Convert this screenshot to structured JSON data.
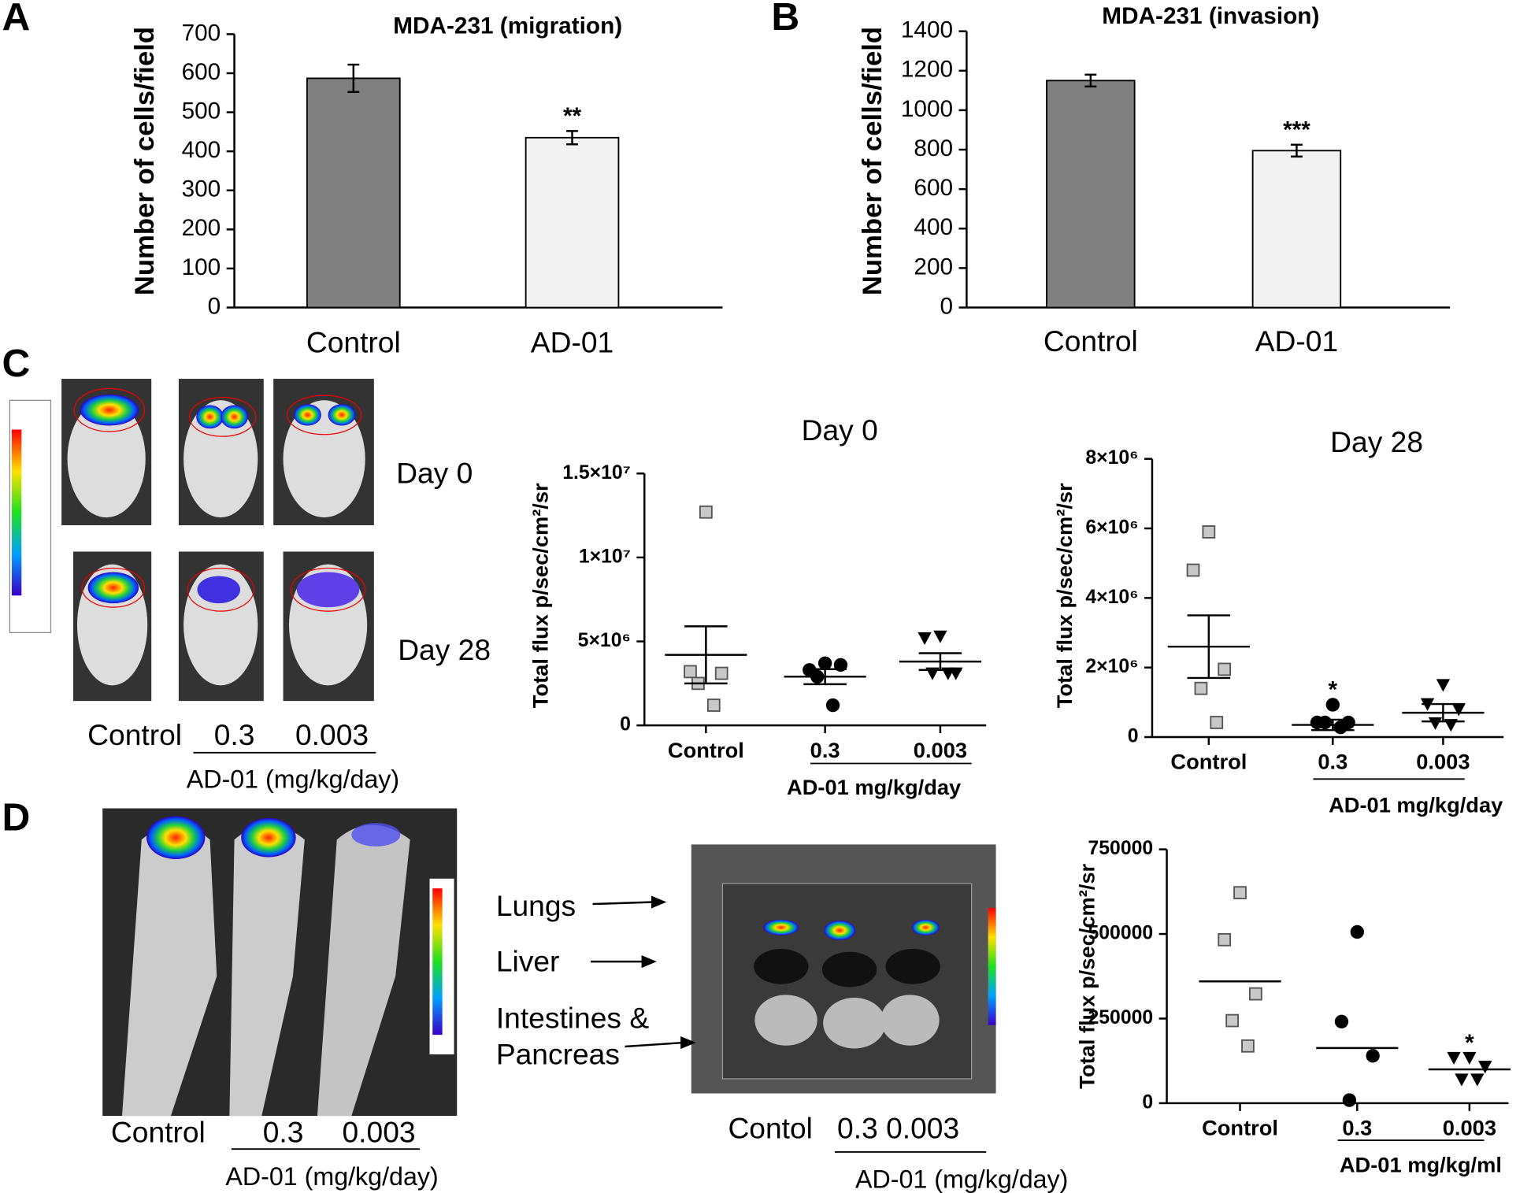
{
  "panel_labels": [
    "A",
    "B",
    "C",
    "D"
  ],
  "panel_C_image": {
    "rows": [
      "Day 0",
      "Day 28"
    ],
    "columns": [
      "Control",
      "0.3",
      "0.003"
    ],
    "group_label": "AD-01 (mg/kg/day)"
  },
  "panel_D_image": {
    "columns": [
      "Control",
      "0.3",
      "0.003"
    ],
    "group_label": "AD-01 (mg/kg/day)"
  },
  "panel_D_organs": {
    "organs": [
      "Lungs",
      "Liver",
      "Intestines &",
      "Pancreas"
    ],
    "columns": [
      "Contol",
      "0.3 0.003"
    ],
    "group_label": "AD-01 (mg/kg/day)"
  },
  "chart_data": [
    {
      "type": "bar",
      "title": "MDA-231 (migration)",
      "y_label": "Number of cells/field",
      "categories": [
        "Control",
        "AD-01"
      ],
      "values": [
        587,
        435
      ],
      "errors": [
        35,
        17
      ],
      "colors": [
        "#808080",
        "#f2f2f2"
      ],
      "annotations": [
        {
          "text": "**",
          "category": "AD-01"
        }
      ],
      "ylim": [
        0,
        700
      ],
      "yticks": [
        0,
        100,
        200,
        300,
        400,
        500,
        600,
        700
      ]
    },
    {
      "type": "bar",
      "title": "MDA-231 (invasion)",
      "y_label": "Number of cells/field",
      "categories": [
        "Control",
        "AD-01"
      ],
      "values": [
        1150,
        795
      ],
      "errors": [
        30,
        30
      ],
      "colors": [
        "#808080",
        "#f2f2f2"
      ],
      "annotations": [
        {
          "text": "***",
          "category": "AD-01"
        }
      ],
      "ylim": [
        0,
        1400
      ],
      "yticks": [
        0,
        200,
        400,
        600,
        800,
        1000,
        1200,
        1400
      ]
    },
    {
      "type": "dot",
      "title": "Day 0",
      "y_label": "Total flux p/sec/cm²/sr",
      "x_label": "AD-01 mg/kg/day",
      "categories": [
        "Control",
        "0.3",
        "0.003"
      ],
      "markers": [
        "square",
        "circle",
        "triangle"
      ],
      "colors": [
        "#c8c8c8",
        "#000000",
        "#000000"
      ],
      "values": [
        [
          12700000,
          3200000,
          3100000,
          2500000,
          1200000
        ],
        [
          3700000,
          3300000,
          3600000,
          2900000,
          1200000
        ],
        [
          5300000,
          5200000,
          3100000,
          3100000,
          3100000
        ]
      ],
      "means": [
        4200000,
        2900000,
        3800000
      ],
      "errors": [
        1700000,
        450000,
        500000
      ],
      "ylim": [
        0,
        15000000
      ],
      "yticks": [
        0,
        {
          "value": 5000000,
          "label": "5×10⁶"
        },
        {
          "value": 10000000,
          "label": "1×10⁷"
        },
        {
          "value": 15000000,
          "label": "1.5×10⁷"
        }
      ]
    },
    {
      "type": "dot",
      "title": "Day 28",
      "y_label": "Total flux p/sec/cm²/sr",
      "x_label": "AD-01 mg/kg/day",
      "categories": [
        "Control",
        "0.3",
        "0.003"
      ],
      "markers": [
        "square",
        "circle",
        "triangle"
      ],
      "colors": [
        "#c8c8c8",
        "#000000",
        "#000000"
      ],
      "values": [
        [
          5900000,
          4800000,
          1950000,
          1400000,
          420000
        ],
        [
          930000,
          420000,
          420000,
          420000,
          280000
        ],
        [
          1500000,
          950000,
          800000,
          400000,
          350000
        ]
      ],
      "means": [
        2600000,
        350000,
        700000
      ],
      "errors": [
        900000,
        150000,
        250000
      ],
      "annotations": [
        {
          "text": "*",
          "category": "0.3"
        }
      ],
      "ylim": [
        0,
        8000000
      ],
      "yticks": [
        0,
        {
          "value": 2000000,
          "label": "2×10⁶"
        },
        {
          "value": 4000000,
          "label": "4×10⁶"
        },
        {
          "value": 6000000,
          "label": "6×10⁶"
        },
        {
          "value": 8000000,
          "label": "8×10⁶"
        }
      ]
    },
    {
      "type": "dot",
      "y_label": "Total flux p/sec/cm²/sr",
      "x_label": "AD-01 mg/kg/ml",
      "categories": [
        "Control",
        "0.3",
        "0.003"
      ],
      "markers": [
        "square",
        "circle",
        "triangle"
      ],
      "colors": [
        "#c8c8c8",
        "#000000",
        "#000000"
      ],
      "values": [
        [
          622000,
          483000,
          323000,
          244000,
          169000
        ],
        [
          506000,
          241000,
          140000,
          9000
        ],
        [
          134000,
          134000,
          108000,
          70000,
          70000
        ]
      ],
      "means": [
        360000,
        163000,
        100000
      ],
      "annotations": [
        {
          "text": "*",
          "category": "0.003"
        }
      ],
      "ylim": [
        0,
        750000
      ],
      "yticks": [
        0,
        250000,
        500000,
        750000
      ]
    }
  ]
}
